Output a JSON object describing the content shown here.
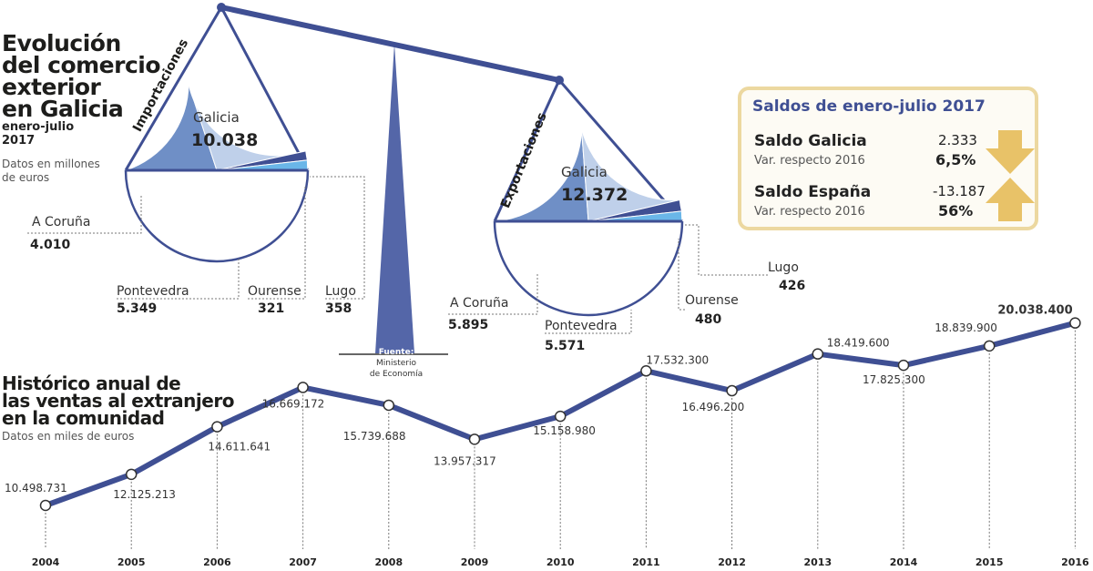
{
  "title": "Evolución del comercio exterior en Galicia",
  "title_lines": [
    "Evolución",
    "del comercio",
    "exterior",
    "en Galicia"
  ],
  "period": "enero-julio 2017",
  "period_lines": [
    "enero-julio",
    "2017"
  ],
  "units_note": "Datos en millones de euros",
  "units_lines": [
    "Datos en millones",
    "de euros"
  ],
  "source_label": "Fuente:",
  "source_lines": [
    "Ministerio",
    "de Economía"
  ],
  "colors": {
    "dark": "#3f4f93",
    "coruna": "#6f8fc6",
    "pontevedra": "#bfd0ea",
    "ourense": "#3f4f93",
    "lugo": "#6ab6e8",
    "arrow": "#e8c268"
  },
  "chart_data": [
    {
      "type": "pie",
      "title": "Importaciones",
      "center_label": "Galicia",
      "total": "10.038",
      "slices": [
        {
          "name": "A Coruña",
          "value": 4010,
          "label": "4.010"
        },
        {
          "name": "Pontevedra",
          "value": 5349,
          "label": "5.349"
        },
        {
          "name": "Ourense",
          "value": 321,
          "label": "321"
        },
        {
          "name": "Lugo",
          "value": 358,
          "label": "358"
        }
      ]
    },
    {
      "type": "pie",
      "title": "Exportaciones",
      "center_label": "Galicia",
      "total": "12.372",
      "slices": [
        {
          "name": "A Coruña",
          "value": 5895,
          "label": "5.895"
        },
        {
          "name": "Pontevedra",
          "value": 5571,
          "label": "5.571"
        },
        {
          "name": "Ourense",
          "value": 480,
          "label": "480"
        },
        {
          "name": "Lugo",
          "value": 426,
          "label": "426"
        }
      ]
    },
    {
      "type": "line",
      "title": "Histórico anual de las ventas al extranjero en la comunidad",
      "title_lines": [
        "Histórico anual de",
        "las ventas al extranjero",
        "en la comunidad"
      ],
      "subtitle": "Datos en miles de euros",
      "x": [
        "2004",
        "2005",
        "2006",
        "2007",
        "2008",
        "2009",
        "2010",
        "2011",
        "2012",
        "2013",
        "2014",
        "2015",
        "2016"
      ],
      "y": [
        10498731,
        12125213,
        14611641,
        16669172,
        15739688,
        13957317,
        15158980,
        17532300,
        16496200,
        18419600,
        17825300,
        18839900,
        20038400
      ],
      "labels": [
        "10.498.731",
        "12.125.213",
        "14.611.641",
        "16.669.172",
        "15.739.688",
        "13.957.317",
        "15.158.980",
        "17.532.300",
        "16.496.200",
        "18.419.600",
        "17.825.300",
        "18.839.900",
        "20.038.400"
      ]
    }
  ],
  "saldos": {
    "title": "Saldos de enero-julio 2017",
    "rows": [
      {
        "name": "Saldo Galicia",
        "value": "2.333",
        "var_label": "Var. respecto 2016",
        "var": "6,5%",
        "arrow": "down"
      },
      {
        "name": "Saldo España",
        "value": "-13.187",
        "var_label": "Var. respecto 2016",
        "var": "56%",
        "arrow": "up"
      }
    ]
  }
}
